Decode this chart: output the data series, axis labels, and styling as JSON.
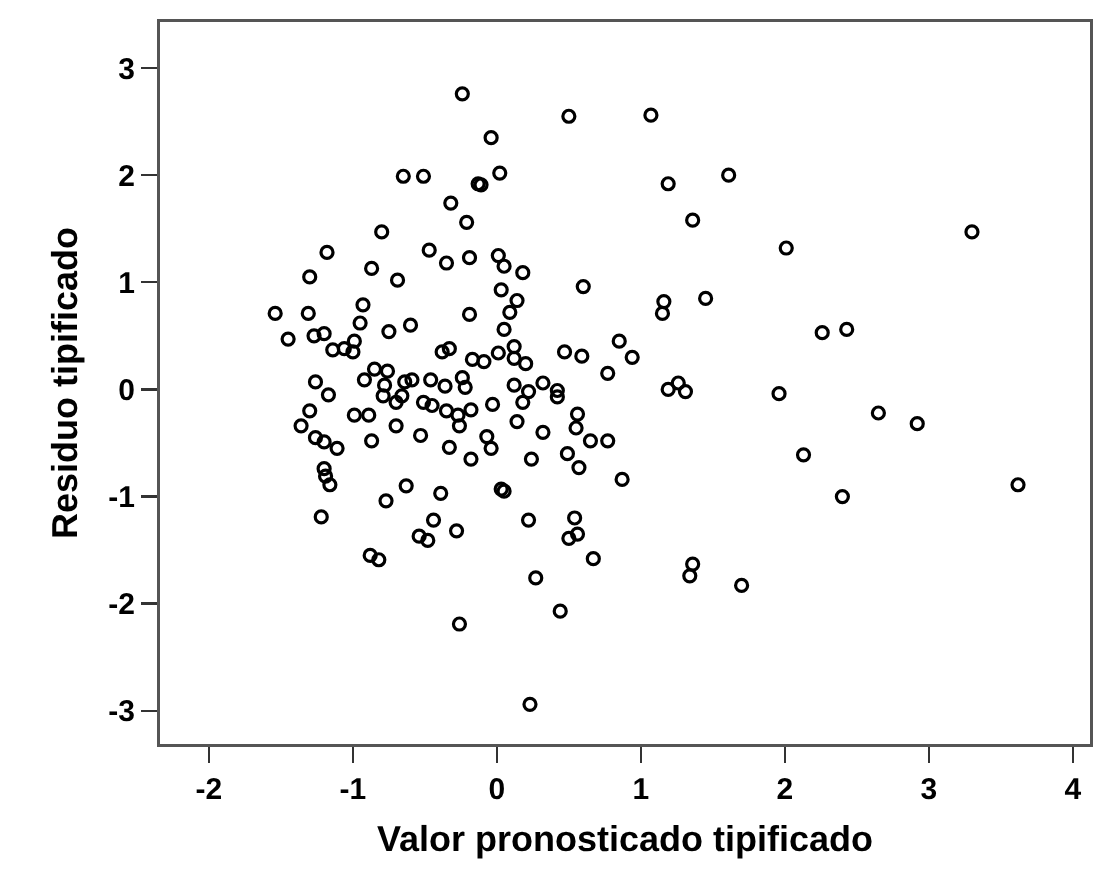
{
  "chart_data": {
    "type": "scatter",
    "xlabel": "Valor pronosticado tipificado",
    "ylabel": "Residuo tipificado",
    "xlim": [
      -2.34,
      4.12
    ],
    "ylim": [
      -3.31,
      3.43
    ],
    "xticks": [
      -2,
      -1,
      0,
      1,
      2,
      3,
      4
    ],
    "yticks": [
      -3,
      -2,
      -1,
      0,
      1,
      2,
      3
    ],
    "grid": false,
    "marker": "circle",
    "series": [
      {
        "color": "#000000",
        "x": [
          -0.24,
          -0.65,
          -0.51,
          -0.13,
          -0.32,
          -0.21,
          -0.8,
          -1.18,
          -0.47,
          -0.35,
          -0.19,
          -1.3,
          -0.87,
          -0.69,
          -0.93,
          -1.54,
          -1.31,
          -0.19,
          -0.95,
          -1.45,
          -1.27,
          -1.2,
          -0.75,
          -0.6,
          -1.14,
          -1.06,
          -0.99,
          -1.0,
          -0.38,
          -0.33,
          -0.17,
          -1.26,
          -1.17,
          -0.92,
          -0.85,
          -0.76,
          -0.78,
          -0.64,
          -0.59,
          -0.46,
          -0.36,
          -0.24,
          -0.22,
          -0.79,
          -0.7,
          -0.66,
          -1.3,
          -0.99,
          -0.89,
          -0.51,
          -0.45,
          -0.35,
          -0.27,
          -0.18,
          -1.36,
          -1.26,
          -1.2,
          -1.11,
          -0.87,
          -0.7,
          -0.53,
          -0.26,
          -0.33,
          -0.18,
          -1.2,
          -1.19,
          -1.16,
          -0.77,
          -0.63,
          -0.39,
          -1.22,
          -0.44,
          -0.54,
          -0.48,
          -0.28,
          -0.88,
          -0.82,
          -0.26,
          0.5,
          1.07,
          -0.04,
          0.02,
          -0.11,
          1.19,
          1.61,
          1.36,
          0.01,
          0.05,
          0.18,
          0.03,
          0.14,
          0.09,
          0.6,
          1.16,
          1.15,
          1.45,
          0.05,
          -0.09,
          0.01,
          0.12,
          0.12,
          0.2,
          0.47,
          0.59,
          0.85,
          0.94,
          0.77,
          0.12,
          0.22,
          0.32,
          0.42,
          1.19,
          1.26,
          1.31,
          1.96,
          0.42,
          -0.03,
          0.18,
          0.14,
          0.32,
          0.56,
          0.55,
          0.65,
          0.77,
          -0.07,
          -0.04,
          0.24,
          0.49,
          0.57,
          0.87,
          0.03,
          0.05,
          0.22,
          0.54,
          0.5,
          0.56,
          0.67,
          0.27,
          0.44,
          1.36,
          1.34,
          1.7,
          0.23,
          2.01,
          3.3,
          2.26,
          2.43,
          2.65,
          2.92,
          2.13,
          2.4,
          3.62
        ],
        "values": [
          2.76,
          1.99,
          1.99,
          1.92,
          1.74,
          1.56,
          1.47,
          1.28,
          1.3,
          1.18,
          1.23,
          1.05,
          1.13,
          1.02,
          0.79,
          0.71,
          0.71,
          0.7,
          0.62,
          0.47,
          0.5,
          0.52,
          0.54,
          0.6,
          0.37,
          0.38,
          0.45,
          0.35,
          0.35,
          0.38,
          0.28,
          0.07,
          -0.05,
          0.09,
          0.19,
          0.17,
          0.04,
          0.07,
          0.09,
          0.09,
          0.03,
          0.11,
          0.02,
          -0.06,
          -0.12,
          -0.06,
          -0.2,
          -0.24,
          -0.24,
          -0.12,
          -0.15,
          -0.2,
          -0.24,
          -0.19,
          -0.34,
          -0.45,
          -0.49,
          -0.55,
          -0.48,
          -0.34,
          -0.43,
          -0.34,
          -0.54,
          -0.65,
          -0.74,
          -0.81,
          -0.89,
          -1.04,
          -0.9,
          -0.97,
          -1.19,
          -1.22,
          -1.37,
          -1.41,
          -1.32,
          -1.55,
          -1.59,
          -2.19,
          2.55,
          2.56,
          2.35,
          2.02,
          1.91,
          1.92,
          2.0,
          1.58,
          1.25,
          1.15,
          1.09,
          0.93,
          0.83,
          0.72,
          0.96,
          0.82,
          0.71,
          0.85,
          0.56,
          0.26,
          0.34,
          0.4,
          0.29,
          0.24,
          0.35,
          0.31,
          0.45,
          0.3,
          0.15,
          0.04,
          -0.02,
          0.06,
          -0.01,
          0.0,
          0.06,
          -0.02,
          -0.04,
          -0.07,
          -0.14,
          -0.12,
          -0.3,
          -0.4,
          -0.23,
          -0.36,
          -0.48,
          -0.48,
          -0.44,
          -0.55,
          -0.65,
          -0.6,
          -0.73,
          -0.84,
          -0.93,
          -0.95,
          -1.22,
          -1.2,
          -1.39,
          -1.35,
          -1.58,
          -1.76,
          -2.07,
          -1.63,
          -1.74,
          -1.83,
          -2.94,
          1.32,
          1.47,
          0.53,
          0.56,
          -0.22,
          -0.32,
          -0.61,
          -1.0,
          -0.89
        ]
      }
    ]
  }
}
